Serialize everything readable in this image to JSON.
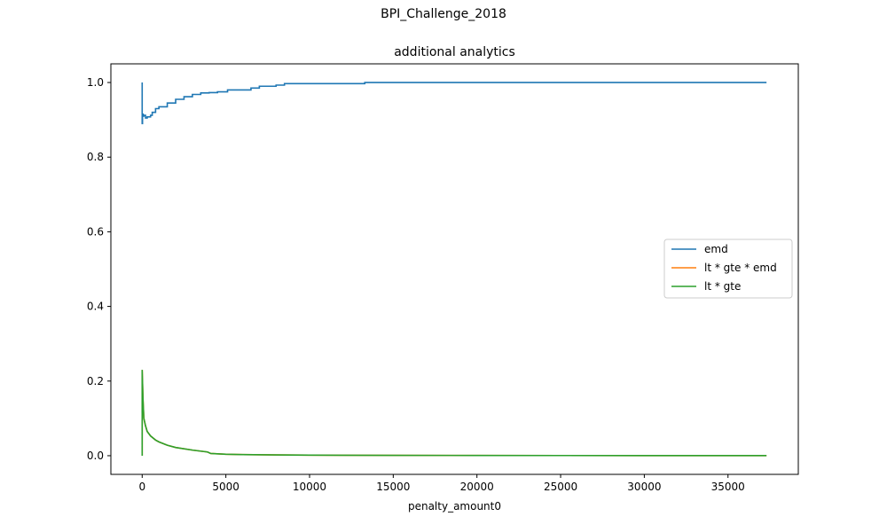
{
  "figure": {
    "suptitle": "BPI_Challenge_2018"
  },
  "chart_data": {
    "type": "line",
    "title": "additional analytics",
    "xlabel": "penalty_amount0",
    "ylabel": "",
    "xlim": [
      -1870,
      39200
    ],
    "ylim": [
      -0.05,
      1.05
    ],
    "x_ticks": [
      0,
      5000,
      10000,
      15000,
      20000,
      25000,
      30000,
      35000
    ],
    "y_ticks": [
      0.0,
      0.2,
      0.4,
      0.6,
      0.8,
      1.0
    ],
    "x_tick_labels": [
      "0",
      "5000",
      "10000",
      "15000",
      "20000",
      "25000",
      "30000",
      "35000"
    ],
    "y_tick_labels": [
      "0.0",
      "0.2",
      "0.4",
      "0.6",
      "0.8",
      "1.0"
    ],
    "grid": false,
    "legend_position": "center-right",
    "series": [
      {
        "name": "emd",
        "color": "#1f77b4",
        "x": [
          0,
          0,
          20,
          40,
          60,
          100,
          200,
          300,
          500,
          600,
          800,
          1000,
          1500,
          2000,
          2500,
          3000,
          3500,
          4000,
          4500,
          5000,
          5100,
          6000,
          6500,
          7000,
          8000,
          8500,
          10000,
          13000,
          13300,
          15000,
          20000,
          25000,
          30000,
          35000,
          37300
        ],
        "y": [
          1.0,
          0.89,
          0.91,
          0.915,
          0.91,
          0.912,
          0.905,
          0.908,
          0.912,
          0.92,
          0.93,
          0.935,
          0.945,
          0.955,
          0.962,
          0.968,
          0.972,
          0.973,
          0.975,
          0.975,
          0.98,
          0.98,
          0.985,
          0.99,
          0.993,
          0.997,
          0.997,
          0.997,
          1.0,
          1.0,
          1.0,
          1.0,
          1.0,
          1.0,
          1.0
        ]
      },
      {
        "name": "lt * gte * emd",
        "color": "#ff7f0e",
        "x": [
          0,
          0,
          50,
          100,
          200,
          300,
          500,
          800,
          1000,
          1500,
          2000,
          3000,
          3900,
          4100,
          5000,
          6000,
          8000,
          10000,
          15000,
          20000,
          25000,
          30000,
          35000,
          37300
        ],
        "y": [
          0.0,
          0.23,
          0.15,
          0.1,
          0.08,
          0.065,
          0.053,
          0.042,
          0.037,
          0.028,
          0.022,
          0.015,
          0.01,
          0.006,
          0.004,
          0.003,
          0.002,
          0.0015,
          0.001,
          0.0007,
          0.0005,
          0.0004,
          0.0003,
          0.0003
        ]
      },
      {
        "name": "lt * gte",
        "color": "#2ca02c",
        "x": [
          0,
          0,
          50,
          100,
          200,
          300,
          500,
          800,
          1000,
          1500,
          2000,
          3000,
          3900,
          4100,
          5000,
          6000,
          8000,
          10000,
          15000,
          20000,
          25000,
          30000,
          35000,
          37300
        ],
        "y": [
          0.0,
          0.23,
          0.15,
          0.1,
          0.08,
          0.065,
          0.053,
          0.042,
          0.037,
          0.028,
          0.022,
          0.015,
          0.01,
          0.006,
          0.004,
          0.003,
          0.002,
          0.0015,
          0.001,
          0.0007,
          0.0005,
          0.0004,
          0.0003,
          0.0003
        ]
      }
    ]
  }
}
